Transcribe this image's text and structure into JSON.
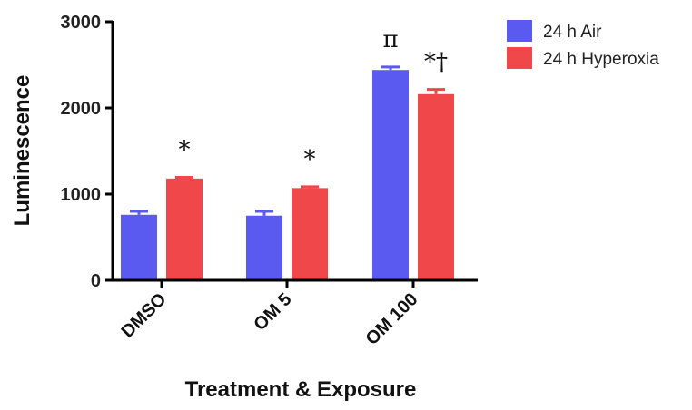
{
  "chart_data": {
    "type": "bar",
    "title": "",
    "xlabel": "Treatment & Exposure",
    "ylabel": "Luminescence",
    "ylim": [
      0,
      3000
    ],
    "yticks": [
      0,
      1000,
      2000,
      3000
    ],
    "categories": [
      "DMSO",
      "OM 5",
      "OM 100"
    ],
    "series": [
      {
        "name": "24 h Air",
        "color": "#5a5af0",
        "values": [
          760,
          750,
          2440
        ],
        "errors": [
          40,
          50,
          35
        ]
      },
      {
        "name": "24 h Hyperoxia",
        "color": "#f0474a",
        "values": [
          1180,
          1070,
          2160
        ],
        "errors": [
          15,
          15,
          55
        ]
      }
    ],
    "annotations": [
      {
        "category": 0,
        "series": 1,
        "text": "*"
      },
      {
        "category": 1,
        "series": 1,
        "text": "*"
      },
      {
        "category": 2,
        "series": 0,
        "text": "π"
      },
      {
        "category": 2,
        "series": 1,
        "text": "*†"
      }
    ],
    "legend_position": "top-right",
    "grid": false
  }
}
